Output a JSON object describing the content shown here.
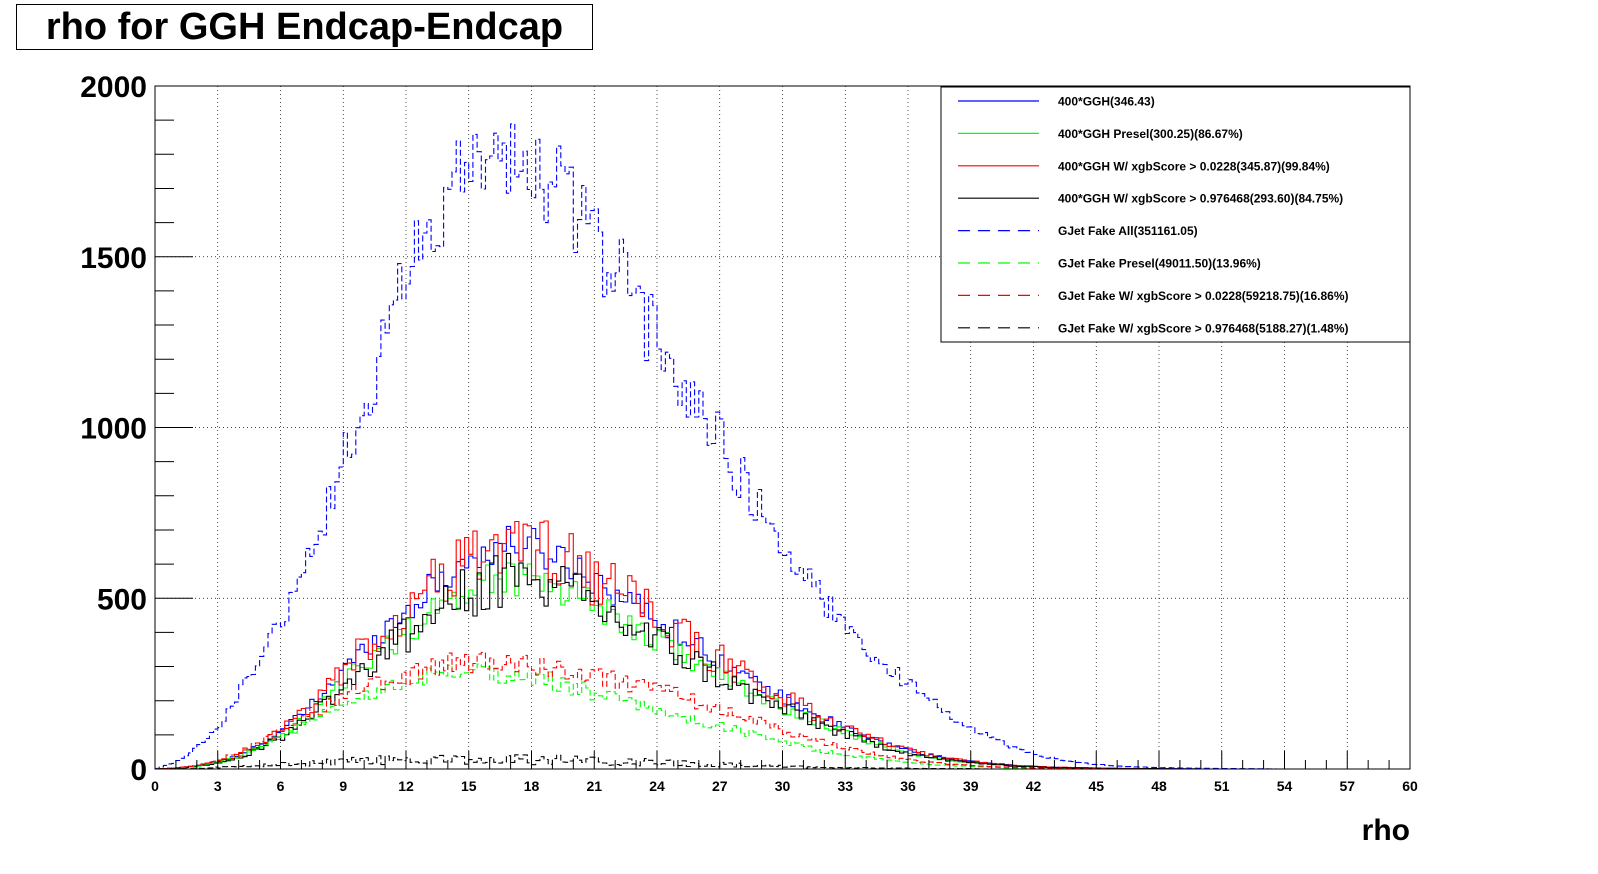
{
  "chart_data": {
    "type": "line",
    "title": "rho for GGH Endcap-Endcap",
    "xlabel": "rho",
    "ylabel": "",
    "xlim": [
      0,
      60
    ],
    "ylim": [
      0,
      2000
    ],
    "x_ticks": [
      "0",
      "3",
      "6",
      "9",
      "12",
      "15",
      "18",
      "21",
      "24",
      "27",
      "30",
      "33",
      "36",
      "39",
      "42",
      "45",
      "48",
      "51",
      "54",
      "57",
      "60"
    ],
    "y_ticks": [
      "0",
      "500",
      "1000",
      "1500",
      "2000"
    ],
    "grid": true,
    "legend_position": "top-right",
    "series": [
      {
        "name": "400*GGH(346.43)",
        "color": "#0000ff",
        "style": "solid",
        "noise": 0.04,
        "x": [
          0,
          1,
          2,
          3,
          4,
          5,
          6,
          7,
          8,
          9,
          10,
          11,
          12,
          13,
          14,
          15,
          16,
          17,
          18,
          19,
          20,
          21,
          22,
          23,
          24,
          25,
          26,
          27,
          28,
          29,
          30,
          31,
          32,
          33,
          34,
          35,
          36,
          37,
          38,
          39,
          40,
          41,
          42,
          43,
          44,
          45,
          46,
          47,
          48,
          50,
          52,
          54,
          56,
          58,
          60
        ],
        "y": [
          0,
          3,
          10,
          20,
          40,
          70,
          110,
          160,
          220,
          290,
          350,
          410,
          460,
          520,
          570,
          610,
          640,
          660,
          650,
          630,
          600,
          560,
          520,
          480,
          440,
          400,
          360,
          320,
          280,
          240,
          210,
          180,
          150,
          120,
          95,
          75,
          55,
          40,
          30,
          22,
          16,
          11,
          8,
          5,
          4,
          3,
          2,
          1,
          1,
          0,
          0,
          0,
          0,
          0,
          0
        ]
      },
      {
        "name": "400*GGH Presel(300.25)(86.67%)",
        "color": "#00ff00",
        "style": "solid",
        "noise": 0.05,
        "x": [
          0,
          1,
          2,
          3,
          4,
          5,
          6,
          7,
          8,
          9,
          10,
          11,
          12,
          13,
          14,
          15,
          16,
          17,
          18,
          19,
          20,
          21,
          22,
          23,
          24,
          25,
          26,
          27,
          28,
          29,
          30,
          31,
          32,
          33,
          34,
          35,
          36,
          37,
          38,
          39,
          40,
          41,
          42,
          43,
          44,
          45,
          46,
          47,
          48,
          50,
          52,
          54,
          56,
          58,
          60
        ],
        "y": [
          0,
          2,
          8,
          17,
          34,
          60,
          95,
          140,
          190,
          250,
          305,
          355,
          400,
          450,
          495,
          530,
          555,
          570,
          565,
          545,
          520,
          485,
          450,
          415,
          380,
          345,
          310,
          275,
          240,
          205,
          180,
          155,
          130,
          105,
          82,
          64,
          48,
          35,
          26,
          19,
          14,
          9,
          7,
          4,
          3,
          2,
          1,
          1,
          1,
          0,
          0,
          0,
          0,
          0,
          0
        ]
      },
      {
        "name": "400*GGH W/ xgbScore > 0.0228(345.87)(99.84%)",
        "color": "#ff0000",
        "style": "solid",
        "noise": 0.07,
        "x": [
          0,
          1,
          2,
          3,
          4,
          5,
          6,
          7,
          8,
          9,
          10,
          11,
          12,
          13,
          14,
          15,
          16,
          17,
          18,
          19,
          20,
          21,
          22,
          23,
          24,
          25,
          26,
          27,
          28,
          29,
          30,
          31,
          32,
          33,
          34,
          35,
          36,
          37,
          38,
          39,
          40,
          41,
          42,
          43,
          44,
          45,
          46,
          47,
          48,
          50,
          52,
          54,
          56,
          58,
          60
        ],
        "y": [
          0,
          3,
          10,
          20,
          40,
          70,
          110,
          160,
          220,
          290,
          350,
          410,
          460,
          520,
          570,
          610,
          640,
          660,
          650,
          630,
          600,
          560,
          520,
          480,
          440,
          400,
          360,
          320,
          280,
          240,
          210,
          180,
          150,
          120,
          95,
          75,
          55,
          40,
          30,
          22,
          16,
          11,
          8,
          5,
          4,
          3,
          2,
          1,
          1,
          0,
          0,
          0,
          0,
          0,
          0
        ]
      },
      {
        "name": "400*GGH W/ xgbScore > 0.976468(293.60)(84.75%)",
        "color": "#000000",
        "style": "solid",
        "noise": 0.07,
        "x": [
          0,
          1,
          2,
          3,
          4,
          5,
          6,
          7,
          8,
          9,
          10,
          11,
          12,
          13,
          14,
          15,
          16,
          17,
          18,
          19,
          20,
          21,
          22,
          23,
          24,
          25,
          26,
          27,
          28,
          29,
          30,
          31,
          32,
          33,
          34,
          35,
          36,
          37,
          38,
          39,
          40,
          41,
          42,
          43,
          44,
          45,
          46,
          47,
          48,
          50,
          52,
          54,
          56,
          58,
          60
        ],
        "y": [
          0,
          2,
          8,
          17,
          34,
          60,
          93,
          136,
          187,
          246,
          297,
          348,
          390,
          441,
          483,
          517,
          543,
          560,
          551,
          534,
          509,
          475,
          441,
          407,
          373,
          339,
          305,
          271,
          237,
          203,
          178,
          153,
          127,
          102,
          80,
          64,
          47,
          34,
          25,
          19,
          14,
          9,
          7,
          4,
          3,
          2,
          1,
          1,
          1,
          0,
          0,
          0,
          0,
          0,
          0
        ]
      },
      {
        "name": "GJet Fake All(351161.05)",
        "color": "#0000ff",
        "style": "dashed",
        "noise": 0.04,
        "x": [
          0,
          1,
          2,
          3,
          4,
          5,
          6,
          7,
          8,
          9,
          10,
          11,
          12,
          13,
          14,
          15,
          16,
          17,
          18,
          19,
          20,
          21,
          22,
          23,
          24,
          25,
          26,
          27,
          28,
          29,
          30,
          31,
          32,
          33,
          34,
          35,
          36,
          37,
          38,
          39,
          40,
          41,
          42,
          43,
          44,
          45,
          46,
          47,
          48,
          50,
          52,
          54,
          56,
          58,
          60
        ],
        "y": [
          0,
          20,
          60,
          120,
          220,
          320,
          430,
          570,
          720,
          900,
          1080,
          1250,
          1420,
          1560,
          1680,
          1740,
          1770,
          1780,
          1760,
          1710,
          1640,
          1560,
          1460,
          1360,
          1260,
          1160,
          1060,
          960,
          860,
          760,
          660,
          570,
          490,
          420,
          360,
          300,
          250,
          200,
          160,
          120,
          90,
          65,
          45,
          30,
          20,
          14,
          9,
          6,
          4,
          2,
          1,
          0,
          0,
          0,
          0
        ]
      },
      {
        "name": "GJet Fake Presel(49011.50)(13.96%)",
        "color": "#00ff00",
        "style": "dashed",
        "noise": 0.05,
        "x": [
          0,
          1,
          2,
          3,
          4,
          5,
          6,
          7,
          8,
          9,
          10,
          11,
          12,
          13,
          14,
          15,
          16,
          17,
          18,
          19,
          20,
          21,
          22,
          23,
          24,
          25,
          26,
          27,
          28,
          29,
          30,
          31,
          32,
          33,
          34,
          35,
          36,
          37,
          38,
          39,
          40,
          41,
          42,
          43,
          44,
          45,
          46,
          47,
          48,
          50,
          52,
          54,
          56,
          58,
          60
        ],
        "y": [
          0,
          2,
          8,
          20,
          40,
          65,
          95,
          125,
          155,
          180,
          205,
          230,
          255,
          270,
          280,
          285,
          285,
          280,
          270,
          255,
          240,
          225,
          205,
          185,
          170,
          155,
          140,
          125,
          110,
          95,
          80,
          65,
          52,
          42,
          34,
          27,
          20,
          14,
          10,
          7,
          5,
          3,
          2,
          1,
          1,
          0,
          0,
          0,
          0,
          0,
          0,
          0,
          0,
          0,
          0
        ]
      },
      {
        "name": "GJet Fake W/ xgbScore > 0.0228(59218.75)(16.86%)",
        "color": "#ff0000",
        "style": "dashed",
        "noise": 0.05,
        "x": [
          0,
          1,
          2,
          3,
          4,
          5,
          6,
          7,
          8,
          9,
          10,
          11,
          12,
          13,
          14,
          15,
          16,
          17,
          18,
          19,
          20,
          21,
          22,
          23,
          24,
          25,
          26,
          27,
          28,
          29,
          30,
          31,
          32,
          33,
          34,
          35,
          36,
          37,
          38,
          39,
          40,
          41,
          42,
          43,
          44,
          45,
          46,
          47,
          48,
          50,
          52,
          54,
          56,
          58,
          60
        ],
        "y": [
          0,
          3,
          10,
          25,
          50,
          80,
          110,
          145,
          180,
          210,
          235,
          255,
          275,
          295,
          305,
          315,
          320,
          320,
          310,
          300,
          290,
          275,
          260,
          245,
          230,
          215,
          195,
          175,
          155,
          135,
          115,
          95,
          78,
          62,
          48,
          37,
          28,
          20,
          14,
          10,
          7,
          5,
          3,
          2,
          1,
          1,
          0,
          0,
          0,
          0,
          0,
          0,
          0,
          0,
          0
        ]
      },
      {
        "name": "GJet Fake W/ xgbScore > 0.976468(5188.27)(1.48%)",
        "color": "#000000",
        "style": "dashed",
        "noise": 0.25,
        "x": [
          0,
          1,
          2,
          3,
          4,
          5,
          6,
          7,
          8,
          9,
          10,
          11,
          12,
          13,
          14,
          15,
          16,
          17,
          18,
          19,
          20,
          21,
          22,
          23,
          24,
          25,
          26,
          27,
          28,
          29,
          30,
          31,
          32,
          33,
          34,
          35,
          36,
          37,
          38,
          39,
          40,
          41,
          42,
          43,
          44,
          45,
          46,
          47,
          48,
          50,
          52,
          54,
          56,
          58,
          60
        ],
        "y": [
          0,
          1,
          2,
          4,
          6,
          10,
          13,
          16,
          19,
          22,
          24,
          26,
          27,
          28,
          29,
          30,
          30,
          29,
          28,
          27,
          26,
          25,
          23,
          21,
          19,
          17,
          15,
          13,
          11,
          9,
          7,
          6,
          5,
          4,
          3,
          2,
          2,
          1,
          1,
          1,
          0,
          0,
          0,
          0,
          0,
          0,
          0,
          0,
          0,
          0,
          0,
          0,
          0,
          0,
          0
        ]
      }
    ]
  }
}
